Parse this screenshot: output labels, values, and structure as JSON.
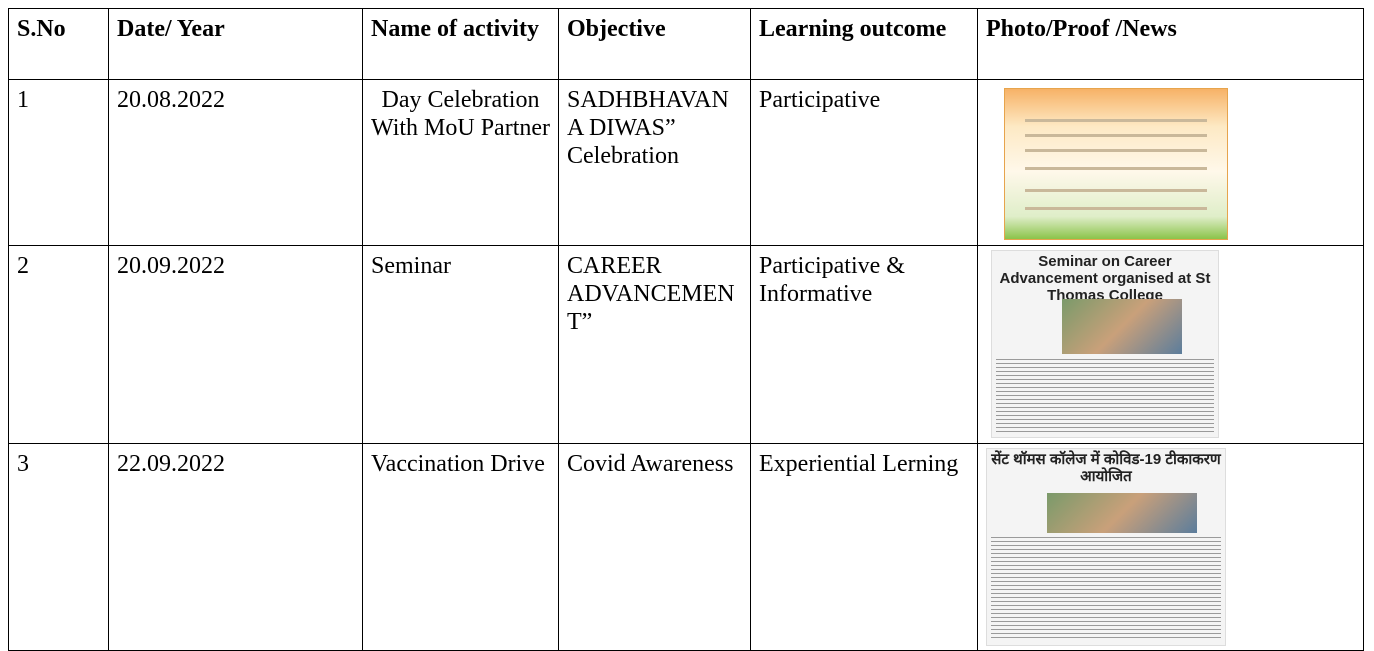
{
  "table": {
    "header": [
      "S.No",
      "Date/ Year",
      "Name of activity",
      "Objective",
      "Learning outcome",
      "Photo/Proof /News"
    ],
    "rows": [
      {
        "cells": [
          "1",
          "20.08.2022",
          "Day Celebration With MoU Partner",
          "SADHBHAVANA DIWAS” Celebration",
          "Participative"
        ]
      },
      {
        "cells": [
          "2",
          "20.09.2022",
          "Seminar",
          "CAREER ADVANCEMENT”",
          "Participative & Informative"
        ],
        "photo_headline": "Seminar on Career Advancement organised at St Thomas College"
      },
      {
        "cells": [
          "3",
          "22.09.2022",
          "Vaccination Drive",
          "Covid Awareness",
          "Experiential Lerning"
        ],
        "photo_headline": "सेंट थॉमस कॉलेज में कोविड-19 टीकाकरण आयोजित"
      }
    ]
  }
}
